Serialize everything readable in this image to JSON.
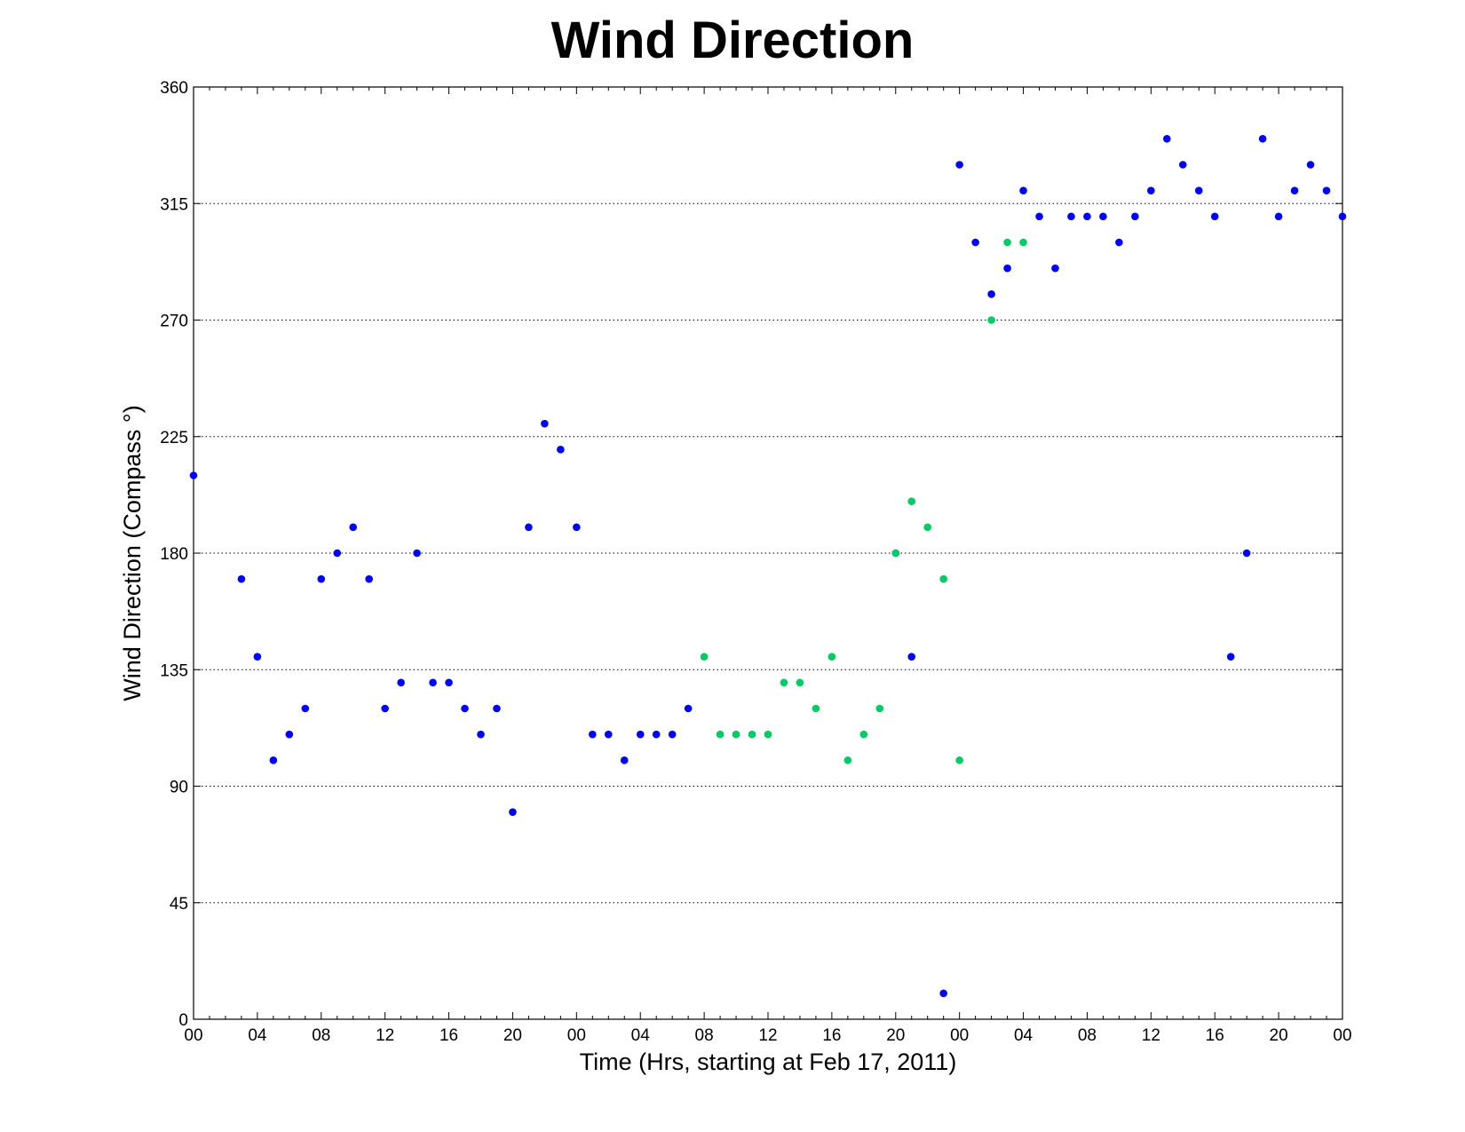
{
  "chart_data": {
    "type": "scatter",
    "title": "Wind Direction",
    "xlabel": "Time (Hrs, starting at Feb 17, 2011)",
    "ylabel": "Wind Direction (Compass  °)",
    "xlim": [
      0,
      72
    ],
    "ylim": [
      0,
      360
    ],
    "x_ticks": [
      0,
      4,
      8,
      12,
      16,
      20,
      24,
      28,
      32,
      36,
      40,
      44,
      48,
      52,
      56,
      60,
      64,
      68,
      72
    ],
    "x_tick_labels": [
      "00",
      "04",
      "08",
      "12",
      "16",
      "20",
      "00",
      "04",
      "08",
      "12",
      "16",
      "20",
      "00",
      "04",
      "08",
      "12",
      "16",
      "20",
      "00"
    ],
    "y_ticks": [
      0,
      45,
      90,
      135,
      180,
      225,
      270,
      315,
      360
    ],
    "y_tick_labels": [
      "0",
      "45",
      "90",
      "135",
      "180",
      "225",
      "270",
      "315",
      "360"
    ],
    "grid": "horizontal dotted",
    "series": [
      {
        "color": "#0000ff",
        "x": [
          0,
          3,
          4,
          5,
          6,
          7,
          8,
          9,
          10,
          11,
          12,
          13,
          14,
          15,
          16,
          17,
          18,
          19,
          20,
          21,
          22,
          23,
          24,
          25,
          26,
          27,
          28,
          29,
          30,
          31,
          44,
          45,
          47,
          48,
          49,
          50,
          51,
          52,
          53,
          54,
          55,
          56,
          57,
          58,
          59,
          60,
          61,
          62,
          63,
          64,
          65,
          66,
          67,
          68,
          69,
          70,
          71,
          72
        ],
        "y": [
          210,
          170,
          140,
          100,
          110,
          120,
          170,
          180,
          190,
          170,
          120,
          130,
          180,
          130,
          130,
          120,
          110,
          120,
          80,
          190,
          230,
          220,
          190,
          110,
          110,
          100,
          110,
          110,
          110,
          120,
          180,
          140,
          10,
          330,
          300,
          280,
          290,
          320,
          310,
          290,
          310,
          310,
          310,
          300,
          310,
          320,
          340,
          330,
          320,
          310,
          140,
          180,
          340,
          310,
          320,
          330,
          320,
          310
        ]
      },
      {
        "color": "#00cc66",
        "x": [
          32,
          33,
          34,
          35,
          36,
          37,
          38,
          39,
          40,
          41,
          42,
          43,
          44,
          45,
          46,
          47,
          48,
          50,
          51,
          52
        ],
        "y": [
          140,
          110,
          110,
          110,
          110,
          130,
          130,
          120,
          140,
          100,
          110,
          120,
          180,
          200,
          190,
          170,
          100,
          270,
          300,
          300
        ]
      }
    ]
  }
}
